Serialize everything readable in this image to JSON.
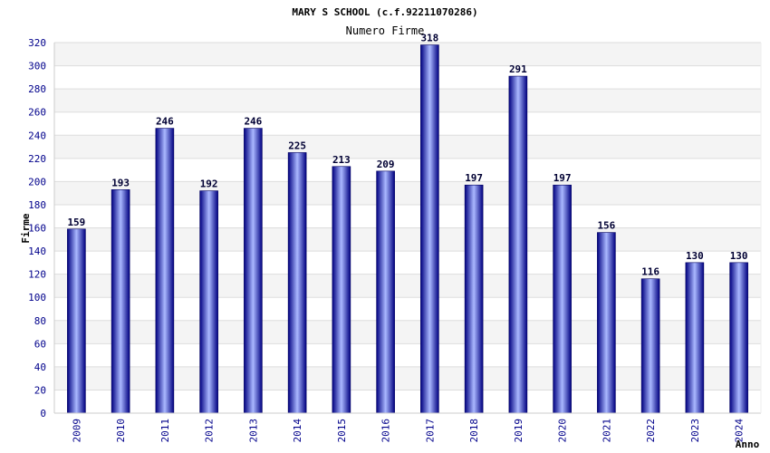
{
  "chart_data": {
    "type": "bar",
    "title": "MARY S SCHOOL (c.f.92211070286)",
    "subtitle": "Numero Firme",
    "xlabel": "Anno",
    "ylabel": "Firme",
    "categories": [
      "2009",
      "2010",
      "2011",
      "2012",
      "2013",
      "2014",
      "2015",
      "2016",
      "2017",
      "2018",
      "2019",
      "2020",
      "2021",
      "2022",
      "2023",
      "2024"
    ],
    "values": [
      159,
      193,
      246,
      192,
      246,
      225,
      213,
      209,
      318,
      197,
      291,
      197,
      156,
      116,
      130,
      130
    ],
    "ylim": [
      0,
      320
    ],
    "yticks": [
      0,
      20,
      40,
      60,
      80,
      100,
      120,
      140,
      160,
      180,
      200,
      220,
      240,
      260,
      280,
      300,
      320
    ],
    "grid": true,
    "legend": "none",
    "colors": {
      "bar_dark": "#000080",
      "bar_light": "#aab8ff",
      "band": "#f4f4f4",
      "grid": "#dddddd",
      "tick_text": "#00008b"
    }
  }
}
